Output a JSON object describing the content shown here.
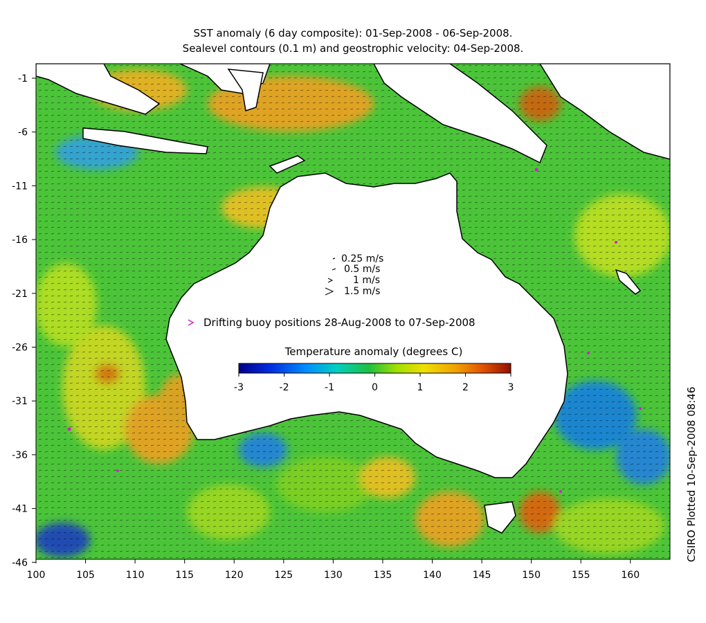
{
  "title_line1": "SST anomaly (6 day composite): 01-Sep-2008 - 06-Sep-2008.",
  "title_line2": "Sealevel contours (0.1 m) and geostrophic velocity: 04-Sep-2008.",
  "side_credit": "CSIRO Plotted 10-Sep-2008 08:46",
  "lon_ticks": [
    "100",
    "105",
    "110",
    "115",
    "120",
    "125",
    "130",
    "135",
    "140",
    "145",
    "150",
    "155",
    "160"
  ],
  "lat_ticks": [
    "-1",
    "-6",
    "-11",
    "-16",
    "-21",
    "-26",
    "-31",
    "-36",
    "-41",
    "-46"
  ],
  "velocity_legend": [
    "0.25 m/s",
    "0.5 m/s",
    "1 m/s",
    "1.5 m/s"
  ],
  "buoy_legend": "Drifting buoy positions 28-Aug-2008 to 07-Sep-2008",
  "colorbar": {
    "label": "Temperature anomaly (degrees C)",
    "ticks": [
      "-3",
      "-2",
      "-1",
      "0",
      "1",
      "2",
      "3"
    ],
    "min": -3,
    "max": 3
  },
  "colors": {
    "ocean_base": "#4ec834",
    "land": "#ffffff",
    "buoy": "#d020d0"
  }
}
